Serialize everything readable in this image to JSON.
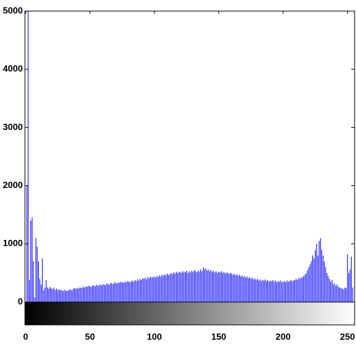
{
  "chart_data": {
    "type": "bar",
    "color": "#0000ff",
    "xlim": [
      0,
      255
    ],
    "ylim": [
      0,
      5000
    ],
    "xticks": [
      0,
      50,
      100,
      150,
      200,
      250
    ],
    "yticks": [
      0,
      1000,
      2000,
      3000,
      4000,
      5000
    ],
    "colorbar": true,
    "values": [
      0,
      2000,
      5000,
      380,
      1400,
      1450,
      700,
      80,
      1100,
      950,
      700,
      400,
      300,
      750,
      200,
      250,
      380,
      250,
      230,
      260,
      240,
      220,
      250,
      210,
      230,
      200,
      220,
      210,
      200,
      190,
      210,
      200,
      190,
      200,
      210,
      220,
      200,
      230,
      240,
      230,
      240,
      230,
      250,
      240,
      250,
      260,
      250,
      270,
      260,
      280,
      270,
      260,
      280,
      290,
      270,
      300,
      280,
      290,
      300,
      290,
      310,
      300,
      290,
      320,
      310,
      300,
      330,
      320,
      310,
      340,
      330,
      320,
      340,
      330,
      350,
      340,
      330,
      350,
      340,
      360,
      350,
      340,
      360,
      370,
      350,
      380,
      360,
      390,
      370,
      400,
      380,
      410,
      400,
      420,
      390,
      430,
      410,
      440,
      420,
      430,
      440,
      420,
      450,
      430,
      460,
      440,
      470,
      450,
      480,
      460,
      490,
      470,
      480,
      500,
      480,
      510,
      490,
      520,
      500,
      510,
      520,
      500,
      530,
      510,
      520,
      540,
      500,
      530,
      510,
      540,
      520,
      550,
      530,
      510,
      540,
      520,
      560,
      530,
      590,
      560,
      580,
      540,
      560,
      530,
      550,
      520,
      540,
      510,
      530,
      500,
      520,
      510,
      530,
      500,
      520,
      490,
      510,
      500,
      480,
      500,
      490,
      470,
      490,
      460,
      480,
      450,
      470,
      440,
      460,
      430,
      450,
      420,
      440,
      410,
      430,
      400,
      420,
      390,
      410,
      380,
      400,
      370,
      390,
      360,
      380,
      370,
      390,
      360,
      380,
      350,
      370,
      360,
      380,
      350,
      370,
      340,
      360,
      350,
      370,
      340,
      350,
      360,
      340,
      370,
      350,
      360,
      380,
      360,
      370,
      380,
      400,
      380,
      410,
      400,
      430,
      420,
      450,
      470,
      500,
      550,
      600,
      650,
      700,
      800,
      750,
      900,
      1000,
      800,
      1050,
      1100,
      900,
      800,
      700,
      600,
      500,
      450,
      400,
      350,
      380,
      300,
      320,
      280,
      300,
      260,
      250,
      240,
      230,
      220,
      250,
      240,
      820,
      500,
      560,
      780,
      250,
      0
    ]
  }
}
